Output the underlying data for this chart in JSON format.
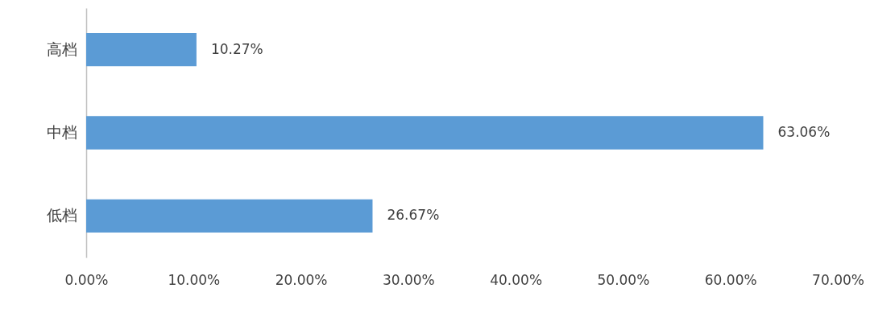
{
  "chart_data": {
    "type": "bar",
    "orientation": "horizontal",
    "categories": [
      "高档",
      "中档",
      "低档"
    ],
    "values": [
      10.27,
      63.06,
      26.67
    ],
    "value_labels": [
      "10.27%",
      "63.06%",
      "26.67%"
    ],
    "color": "#5b9bd5",
    "xlim": [
      0,
      70
    ],
    "xticks": [
      {
        "value": 0,
        "label": "0.00%"
      },
      {
        "value": 10,
        "label": "10.00%"
      },
      {
        "value": 20,
        "label": "20.00%"
      },
      {
        "value": 30,
        "label": "30.00%"
      },
      {
        "value": 40,
        "label": "40.00%"
      },
      {
        "value": 50,
        "label": "50.00%"
      },
      {
        "value": 60,
        "label": "60.00%"
      },
      {
        "value": 70,
        "label": "70.00%"
      }
    ]
  }
}
